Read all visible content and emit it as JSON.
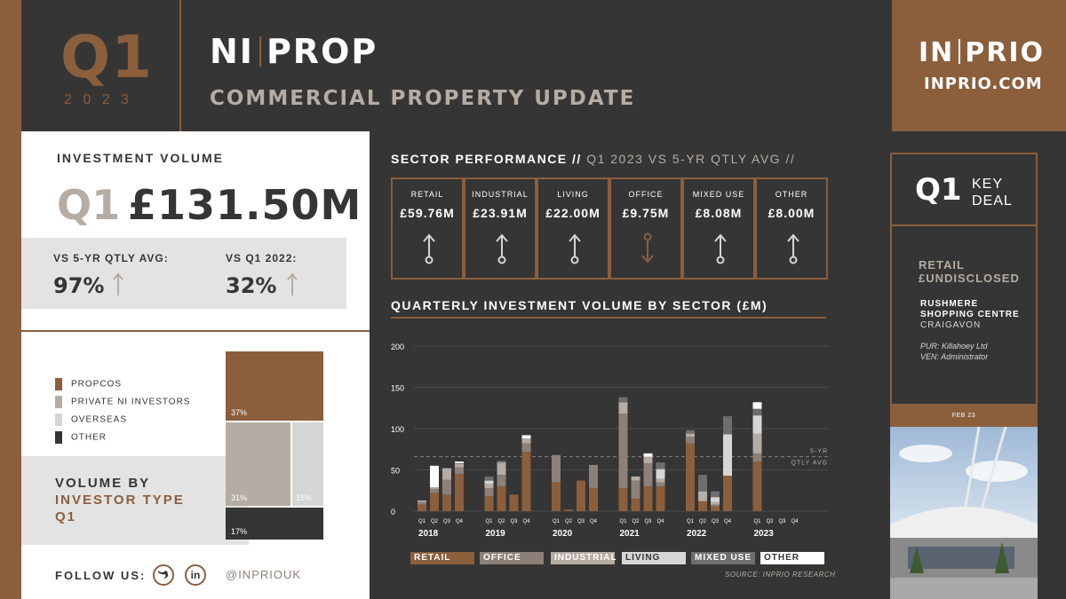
{
  "header": {
    "quarter": "Q1",
    "year": "2 0 2 3",
    "brand_left": "NI",
    "brand_right": "PROP",
    "subtitle": "COMMERCIAL PROPERTY UPDATE",
    "logo_left": "IN",
    "logo_right": "PRIO",
    "website": "INPRIO.COM"
  },
  "investment": {
    "title": "INVESTMENT VOLUME",
    "quarter": "Q1",
    "amount": "£131.50M",
    "vs_avg_label": "VS 5-YR QTLY AVG:",
    "vs_avg_value": "97%",
    "vs_prev_label": "VS Q1 2022:",
    "vs_prev_value": "32%"
  },
  "investor_type": {
    "title_line1": "VOLUME BY",
    "title_line2": "INVESTOR TYPE",
    "title_line3": "Q1",
    "legend": [
      {
        "label": "PROPCOS",
        "color": "#8b5e3c"
      },
      {
        "label": "PRIVATE NI INVESTORS",
        "color": "#b5aca3"
      },
      {
        "label": "OVERSEAS",
        "color": "#d6d6d6"
      },
      {
        "label": "OTHER",
        "color": "#353535"
      }
    ],
    "treemap": [
      {
        "label": "37%",
        "value": 37,
        "color": "#8b5e3c"
      },
      {
        "label": "31%",
        "value": 31,
        "color": "#b5aca3"
      },
      {
        "label": "15%",
        "value": 15,
        "color": "#d6d6d6"
      },
      {
        "label": "17%",
        "value": 17,
        "color": "#353535"
      }
    ]
  },
  "follow": {
    "label": "FOLLOW US:",
    "handle": "@INPRIOUK",
    "twitter_icon": "twitter-icon",
    "linkedin_icon": "linkedin-icon",
    "linkedin_text": "in"
  },
  "sector_perf": {
    "title": "SECTOR PERFORMANCE //",
    "subtitle": "Q1 2023 VS 5-YR QTLY AVG //",
    "sectors": [
      {
        "name": "RETAIL",
        "value": "£59.76M",
        "direction": "up"
      },
      {
        "name": "INDUSTRIAL",
        "value": "£23.91M",
        "direction": "up"
      },
      {
        "name": "LIVING",
        "value": "£22.00M",
        "direction": "up"
      },
      {
        "name": "OFFICE",
        "value": "£9.75M",
        "direction": "down"
      },
      {
        "name": "MIXED USE",
        "value": "£8.08M",
        "direction": "up"
      },
      {
        "name": "OTHER",
        "value": "£8.00M",
        "direction": "up"
      }
    ]
  },
  "chart_title": "QUARTERLY INVESTMENT VOLUME BY SECTOR (£M)",
  "chart_source": "SOURCE: INPRIO RESEARCH",
  "avg_label_1": "5-YR",
  "avg_label_2": "QTLY AVG",
  "chart_data": {
    "type": "bar",
    "stacked": true,
    "title": "QUARTERLY INVESTMENT VOLUME BY SECTOR (£M)",
    "ylim": [
      0,
      200
    ],
    "yticks": [
      0,
      50,
      100,
      150,
      200
    ],
    "reference_line": 66,
    "years": [
      "2018",
      "2019",
      "2020",
      "2021",
      "2022",
      "2023"
    ],
    "quarter_labels": [
      "Q1",
      "Q2",
      "Q3",
      "Q4"
    ],
    "series": [
      {
        "name": "RETAIL",
        "color": "#8b5e3c",
        "values": [
          8,
          22,
          20,
          45,
          18,
          30,
          20,
          72,
          35,
          2,
          37,
          28,
          28,
          15,
          30,
          30,
          82,
          12,
          6,
          43,
          60,
          0,
          0,
          0
        ]
      },
      {
        "name": "OFFICE",
        "color": "#8c8078",
        "values": [
          3,
          5,
          18,
          8,
          10,
          14,
          0,
          10,
          33,
          0,
          0,
          28,
          90,
          22,
          28,
          5,
          8,
          0,
          2,
          0,
          10,
          0,
          0,
          0
        ]
      },
      {
        "name": "INDUSTRIAL",
        "color": "#b5aca3",
        "values": [
          2,
          2,
          14,
          4,
          5,
          15,
          0,
          6,
          0,
          0,
          0,
          0,
          14,
          5,
          8,
          4,
          4,
          12,
          3,
          0,
          24,
          0,
          0,
          0
        ]
      },
      {
        "name": "LIVING",
        "color": "#d6d6d6",
        "values": [
          0,
          0,
          0,
          0,
          4,
          0,
          0,
          0,
          0,
          0,
          0,
          0,
          0,
          0,
          0,
          12,
          0,
          0,
          6,
          50,
          22,
          0,
          0,
          0
        ]
      },
      {
        "name": "MIXED USE",
        "color": "#6e6e6e",
        "values": [
          0,
          0,
          0,
          1,
          5,
          2,
          0,
          0,
          0,
          0,
          0,
          0,
          6,
          0,
          0,
          8,
          4,
          20,
          7,
          22,
          8,
          0,
          0,
          0
        ]
      },
      {
        "name": "OTHER",
        "color": "#ffffff",
        "values": [
          0,
          26,
          0,
          2,
          0,
          0,
          0,
          4,
          0,
          0,
          0,
          0,
          0,
          0,
          4,
          0,
          0,
          0,
          0,
          0,
          8,
          0,
          0,
          0
        ]
      }
    ]
  },
  "key_deal": {
    "q": "Q1",
    "label_1": "KEY",
    "label_2": "DEAL",
    "sector": "RETAIL",
    "price": "£UNDISCLOSED",
    "property_1": "RUSHMERE",
    "property_2": "SHOPPING CENTRE",
    "location": "CRAIGAVON",
    "pur": "PUR: Killahoey Ltd",
    "ven": "VEN: Administrator",
    "date": "FEB 23"
  }
}
